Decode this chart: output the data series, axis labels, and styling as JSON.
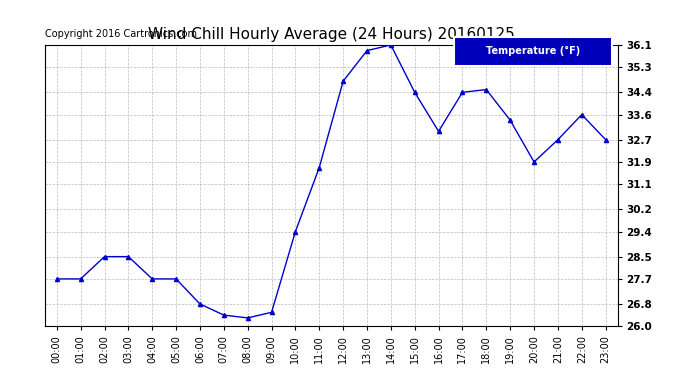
{
  "title": "Wind Chill Hourly Average (24 Hours) 20160125",
  "copyright": "Copyright 2016 Cartronics.com",
  "legend_label": "Temperature (°F)",
  "x_labels": [
    "00:00",
    "01:00",
    "02:00",
    "03:00",
    "04:00",
    "05:00",
    "06:00",
    "07:00",
    "08:00",
    "09:00",
    "10:00",
    "11:00",
    "12:00",
    "13:00",
    "14:00",
    "15:00",
    "16:00",
    "17:00",
    "18:00",
    "19:00",
    "20:00",
    "21:00",
    "22:00",
    "23:00"
  ],
  "y_values": [
    27.7,
    27.7,
    28.5,
    28.5,
    27.7,
    27.7,
    26.8,
    26.4,
    26.3,
    26.5,
    29.4,
    31.7,
    34.8,
    35.9,
    36.1,
    34.4,
    33.0,
    34.4,
    34.5,
    33.4,
    31.9,
    32.7,
    33.6,
    32.7
  ],
  "ylim": [
    26.0,
    36.1
  ],
  "yticks": [
    26.0,
    26.8,
    27.7,
    28.5,
    29.4,
    30.2,
    31.1,
    31.9,
    32.7,
    33.6,
    34.4,
    35.3,
    36.1
  ],
  "line_color": "#0000cc",
  "marker": "^",
  "marker_size": 3,
  "background_color": "#ffffff",
  "grid_color": "#bbbbbb",
  "title_fontsize": 11,
  "copyright_fontsize": 7,
  "legend_bg": "#0000bb",
  "legend_fg": "#ffffff",
  "tick_fontsize": 7,
  "ytick_fontsize": 7.5
}
